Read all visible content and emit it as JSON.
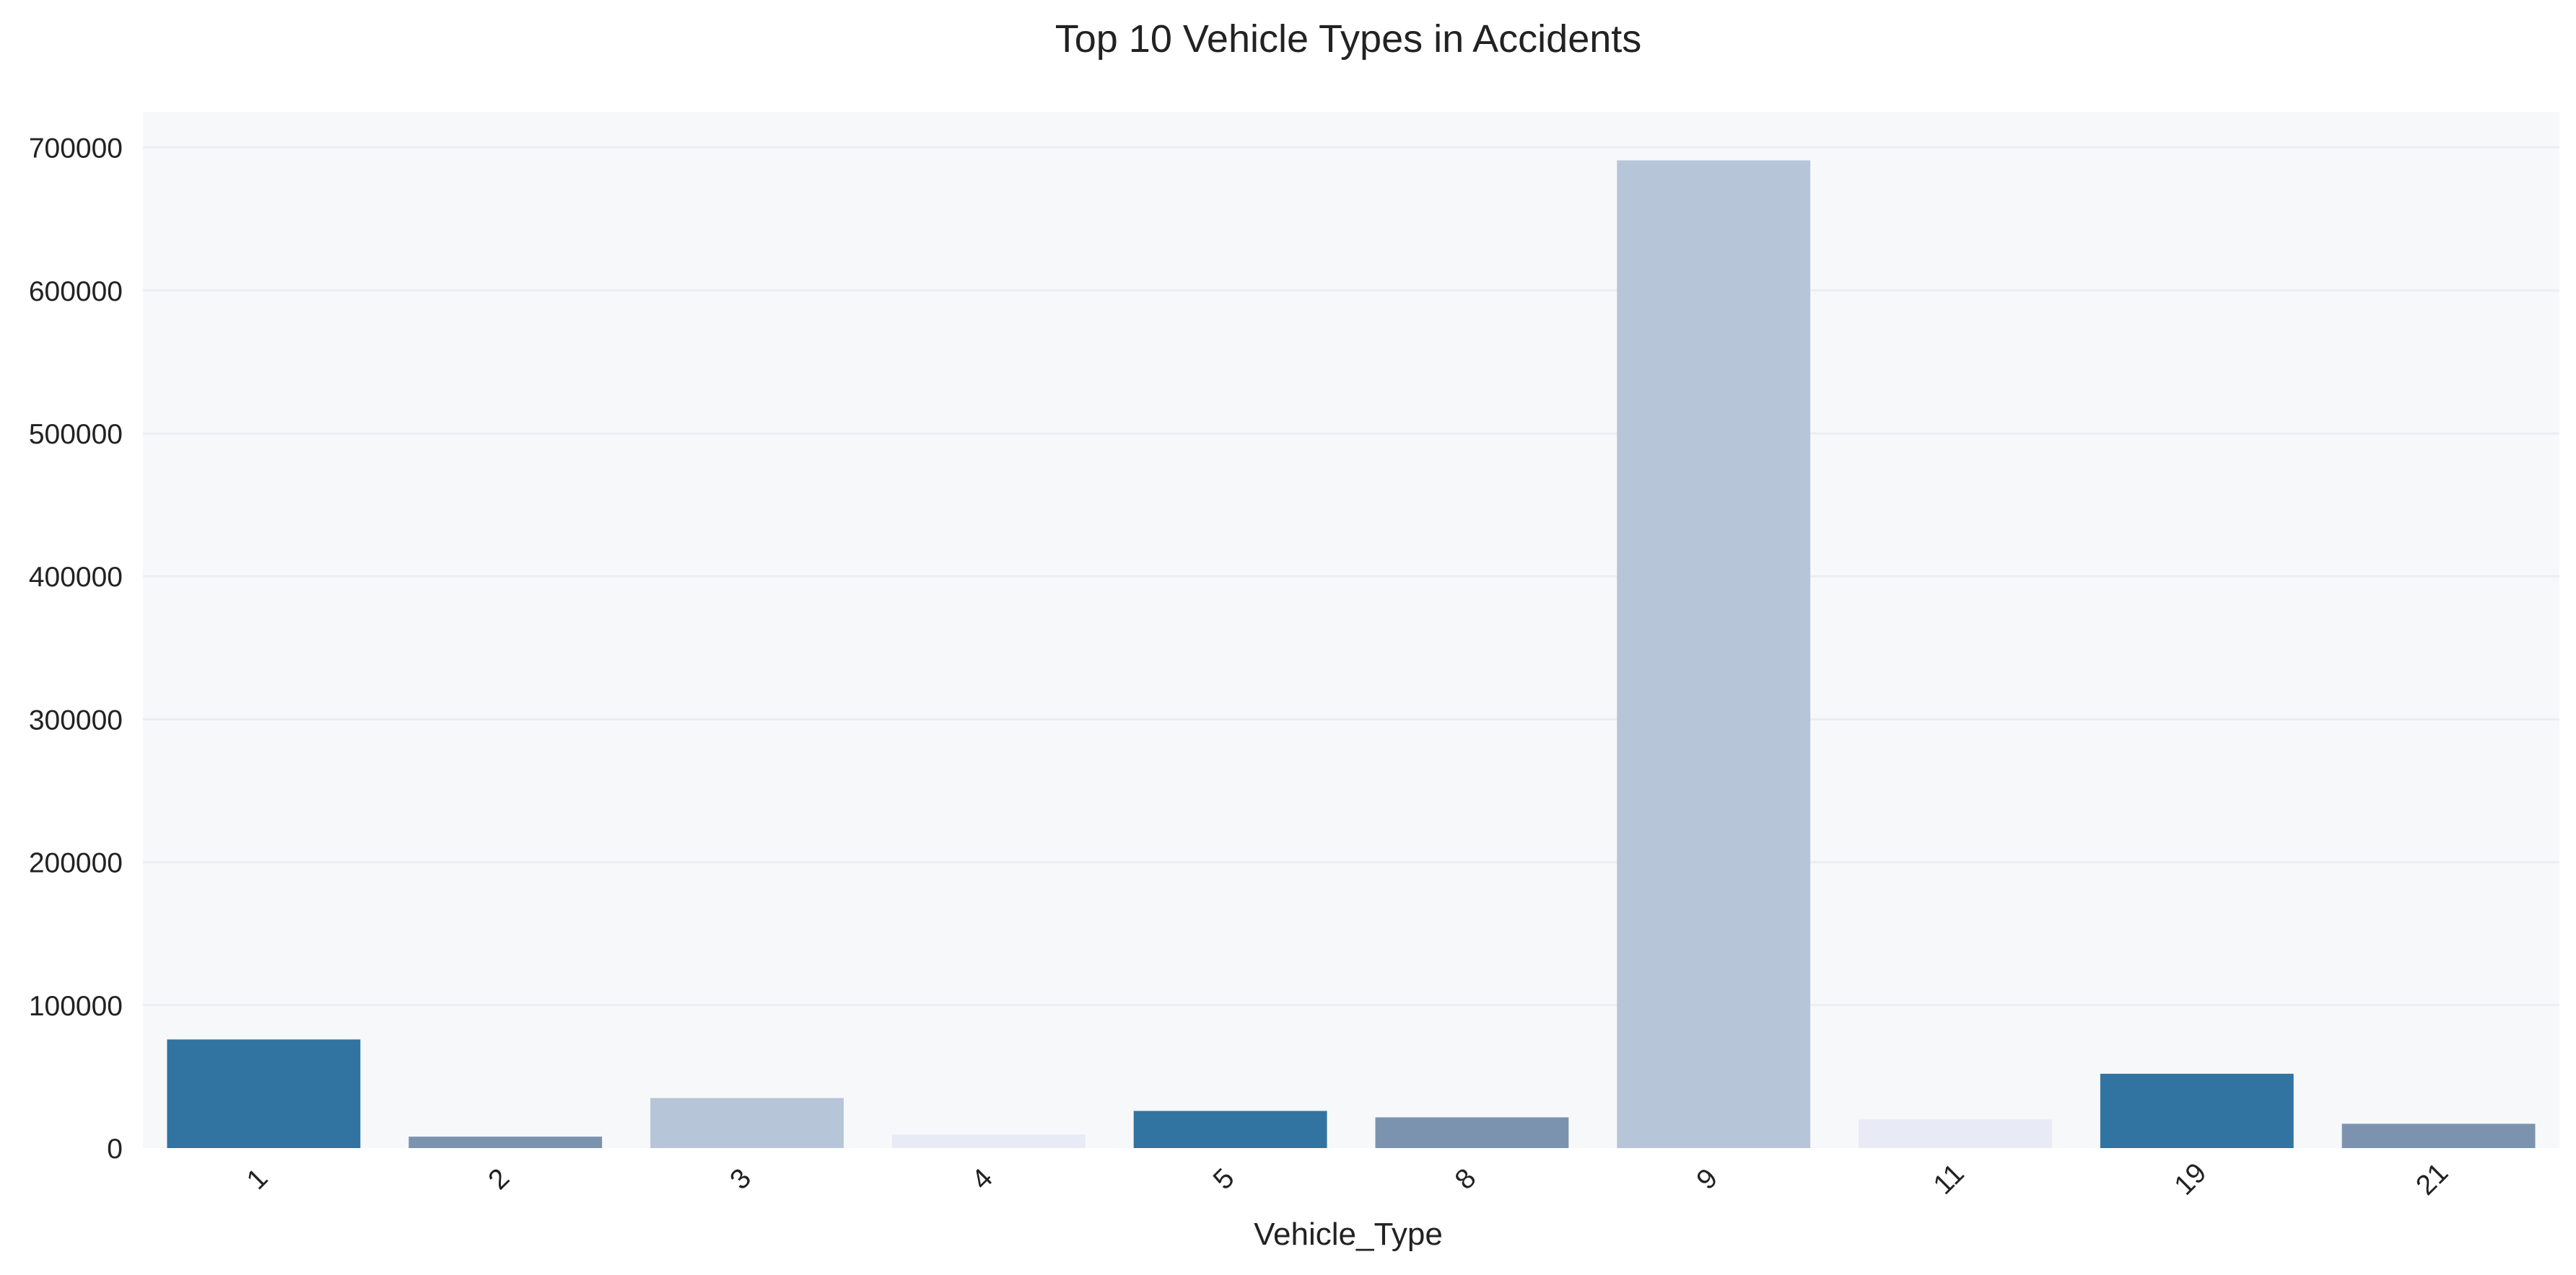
{
  "chart_data": {
    "type": "bar",
    "title": "Top 10 Vehicle Types in Accidents",
    "xlabel": "Vehicle_Type",
    "ylabel": "",
    "categories": [
      "1",
      "2",
      "3",
      "4",
      "5",
      "8",
      "9",
      "11",
      "19",
      "21"
    ],
    "values": [
      76000,
      8000,
      35000,
      9500,
      26000,
      21500,
      691000,
      20000,
      52000,
      17000
    ],
    "bar_colors": [
      "#3274a1",
      "#7b93ae",
      "#b6c5d8",
      "#e8eaf6",
      "#3274a1",
      "#7b93ae",
      "#b6c5d8",
      "#e8eaf6",
      "#3274a1",
      "#7b93ae"
    ],
    "yticks": [
      0,
      100000,
      200000,
      300000,
      400000,
      500000,
      600000,
      700000
    ],
    "ylim": [
      0,
      725000
    ],
    "grid": true,
    "plot_background": "#f7f8fa",
    "grid_color": "#ebedf0",
    "text_color": "#222222"
  }
}
